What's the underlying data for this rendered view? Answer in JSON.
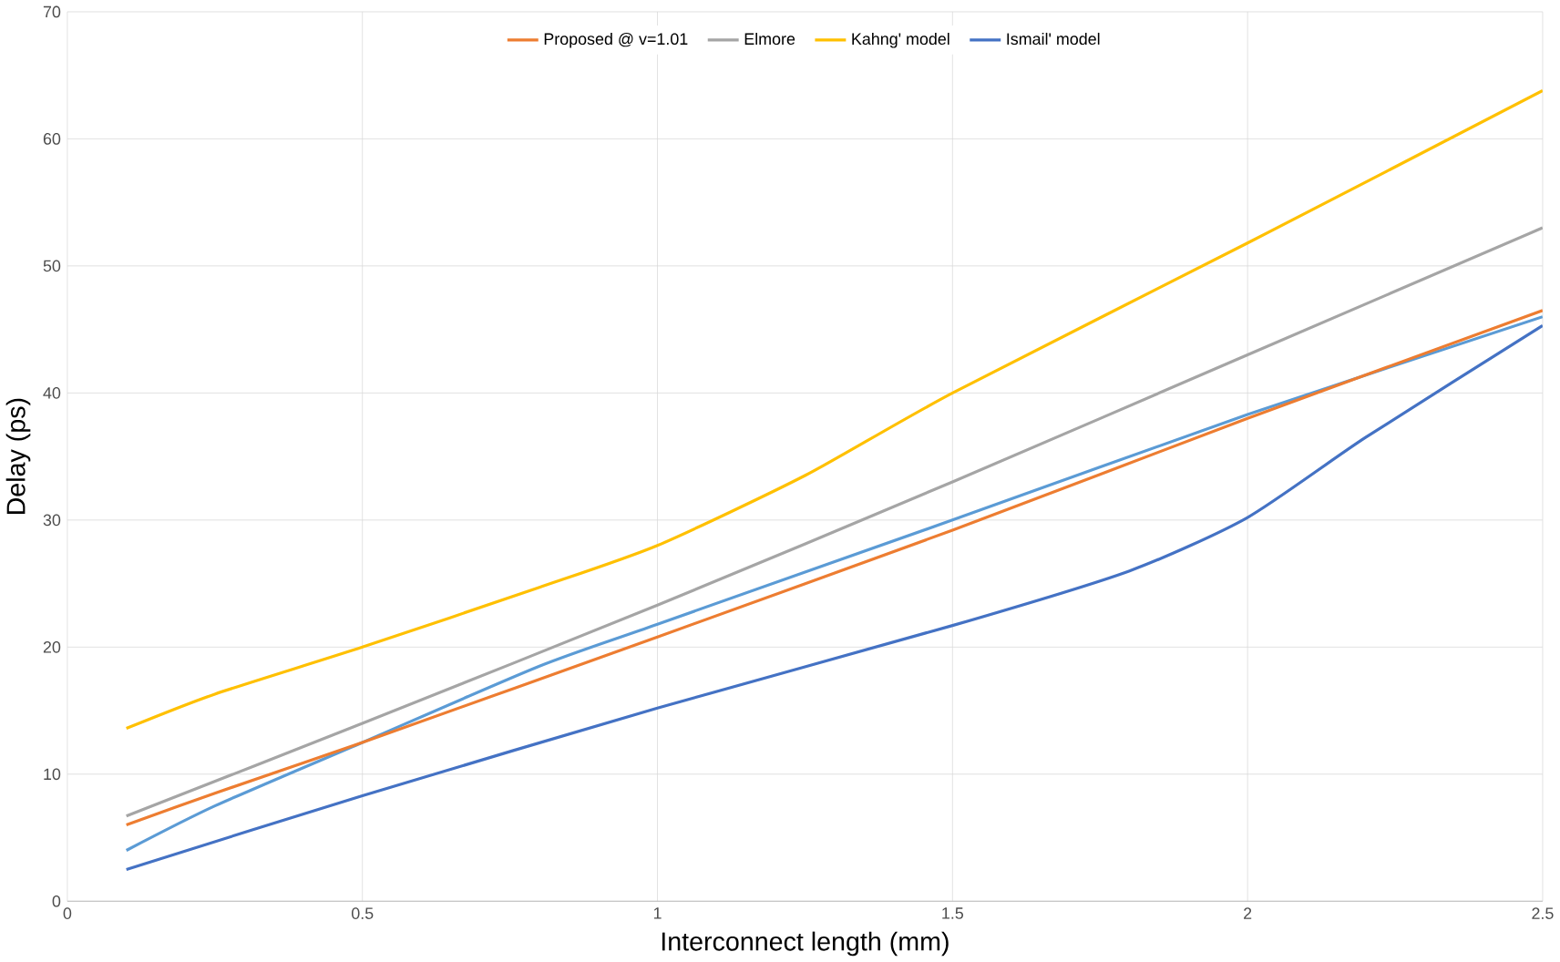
{
  "chart_data": {
    "type": "line",
    "xlabel": "Interconnect length (mm)",
    "ylabel": "Delay (ps)",
    "xlim": [
      0,
      2.5
    ],
    "ylim": [
      0,
      70
    ],
    "xticks": [
      0,
      0.5,
      1,
      1.5,
      2,
      2.5
    ],
    "yticks": [
      0,
      10,
      20,
      30,
      40,
      50,
      60,
      70
    ],
    "grid": true,
    "legend": "top",
    "marker": "none",
    "line_style": "solid",
    "series": [
      {
        "color": "#5b9bd5",
        "x": [
          0.1,
          0.25,
          0.5,
          0.8,
          1,
          1.5,
          2,
          2.5
        ],
        "values": [
          4,
          7.5,
          12.5,
          18.5,
          21.8,
          30,
          38.3,
          46
        ]
      },
      {
        "name": "Proposed @ v=1.01",
        "color": "#ed7d31",
        "x": [
          0.1,
          0.25,
          0.5,
          1,
          1.5,
          2,
          2.5
        ],
        "values": [
          6,
          8.5,
          12.5,
          20.8,
          29.2,
          38,
          46.5
        ]
      },
      {
        "name": "Elmore",
        "color": "#a5a5a5",
        "x": [
          0.1,
          0.5,
          1,
          1.5,
          2,
          2.5
        ],
        "values": [
          6.7,
          14,
          23.3,
          33,
          43,
          53
        ]
      },
      {
        "name": "Kahng' model",
        "color": "#ffc000",
        "x": [
          0.1,
          0.25,
          0.5,
          0.8,
          1,
          1.25,
          1.5,
          2,
          2.5
        ],
        "values": [
          13.6,
          16.3,
          20,
          24.7,
          28,
          33.5,
          40,
          51.8,
          63.8
        ]
      },
      {
        "name": "Ismail' model",
        "color": "#4472c4",
        "x": [
          0.1,
          0.5,
          1,
          1.5,
          1.8,
          2,
          2.2,
          2.5
        ],
        "values": [
          2.5,
          8.3,
          15.2,
          21.7,
          26,
          30.2,
          36.5,
          45.3
        ]
      }
    ]
  }
}
